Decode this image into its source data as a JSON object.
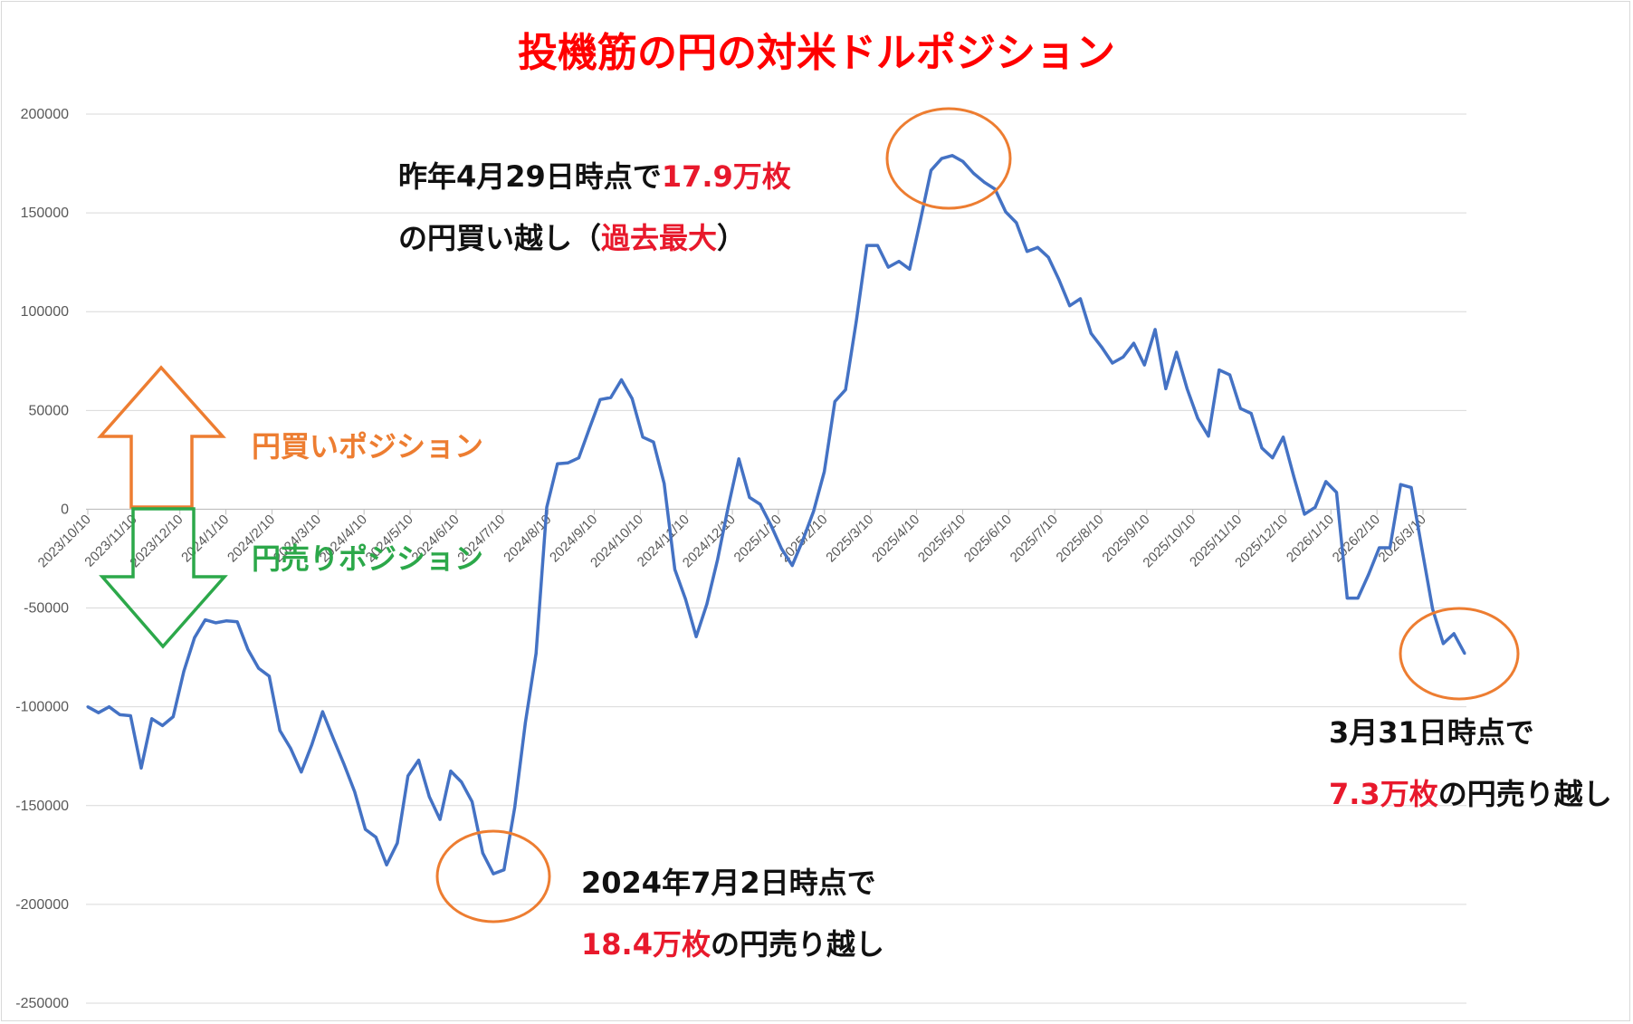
{
  "title": "投機筋の円の対米ドルポジション",
  "colors": {
    "line": "#4472c4",
    "annotation_circle": "#ed7d31",
    "buy_arrow": "#ed7d31",
    "sell_arrow": "#2ca84a",
    "highlight": "#e8192c",
    "title": "#ff0000"
  },
  "legend_buy": "円買いポジション",
  "legend_sell": "円売りポジション",
  "annotations": {
    "peak": {
      "prefix": "昨年4月29日時点で",
      "value": "17.9万枚",
      "line2_start": "の円買い越し（",
      "line2_red": "過去最大",
      "line2_end": "）"
    },
    "low2024": {
      "line1": "2024年7月2日時点で",
      "value": "18.4万枚",
      "suffix": "の円売り越し"
    },
    "latest": {
      "line1": "3月31日時点で",
      "value": "7.3万枚",
      "suffix": "の円売り越し"
    }
  },
  "chart_data": {
    "type": "line",
    "title": "投機筋の円の対米ドルポジション",
    "xlabel": "",
    "ylabel": "",
    "ylim": [
      -250000,
      200000
    ],
    "yticks": [
      200000,
      150000,
      100000,
      50000,
      0,
      -50000,
      -100000,
      -150000,
      -200000,
      -250000
    ],
    "ytick_labels": [
      "200000",
      "150000",
      "100000",
      "50000",
      "0",
      "-50000",
      "-100000",
      "-150000",
      "-200000",
      "-250000"
    ],
    "xtick_labels": [
      "2023/10/10",
      "2023/11/10",
      "2023/12/10",
      "2024/1/10",
      "2024/2/10",
      "2024/3/10",
      "2024/4/10",
      "2024/5/10",
      "2024/6/10",
      "2024/7/10",
      "2024/8/10",
      "2024/9/10",
      "2024/10/10",
      "2024/11/10",
      "2024/12/10",
      "2025/1/10",
      "2025/2/10",
      "2025/3/10",
      "2025/4/10",
      "2025/5/10",
      "2025/6/10",
      "2025/7/10",
      "2025/8/10",
      "2025/9/10",
      "2025/10/10",
      "2025/11/10",
      "2025/12/10",
      "2026/1/10",
      "2026/2/10",
      "2026/3/10"
    ],
    "grid": true,
    "legend": "none",
    "series": [
      {
        "values": [
          -100000,
          -103000,
          -100000,
          -104000,
          -104500,
          -131000,
          -106000,
          -109500,
          -105000,
          -82000,
          -65000,
          -56000,
          -57500,
          -56500,
          -57000,
          -71000,
          -80500,
          -84500,
          -112000,
          -121000,
          -133000,
          -119000,
          -102500,
          -116000,
          -129000,
          -143000,
          -162000,
          -166000,
          -180000,
          -169000,
          -135000,
          -127000,
          -145500,
          -157000,
          -132500,
          -138000,
          -148000,
          -174000,
          -184500,
          -182500,
          -151000,
          -108000,
          -73000,
          1000,
          23000,
          23500,
          26000,
          41000,
          55500,
          56500,
          65500,
          56000,
          36500,
          34000,
          13000,
          -30500,
          -45500,
          -64500,
          -48000,
          -25500,
          1000,
          25500,
          6000,
          2500,
          -8000,
          -20000,
          -28500,
          -15500,
          -1000,
          19000,
          54500,
          60500,
          95000,
          133500,
          133500,
          122500,
          125500,
          121500,
          146000,
          171500,
          177500,
          179000,
          176000,
          170000,
          165500,
          162000,
          150500,
          145000,
          130500,
          132500,
          127500,
          116000,
          103000,
          106500,
          89000,
          82000,
          74000,
          77000,
          84000,
          73000,
          91000,
          61000,
          79500,
          61000,
          46000,
          37000,
          70500,
          68000,
          51000,
          48500,
          31000,
          26000,
          36500,
          16500,
          -2500,
          1000,
          14000,
          8500,
          -45000,
          -45000,
          -33000,
          -19500,
          -19500,
          12500,
          11000,
          -20000,
          -50500,
          -68000,
          -63000,
          -73000
        ]
      }
    ]
  }
}
